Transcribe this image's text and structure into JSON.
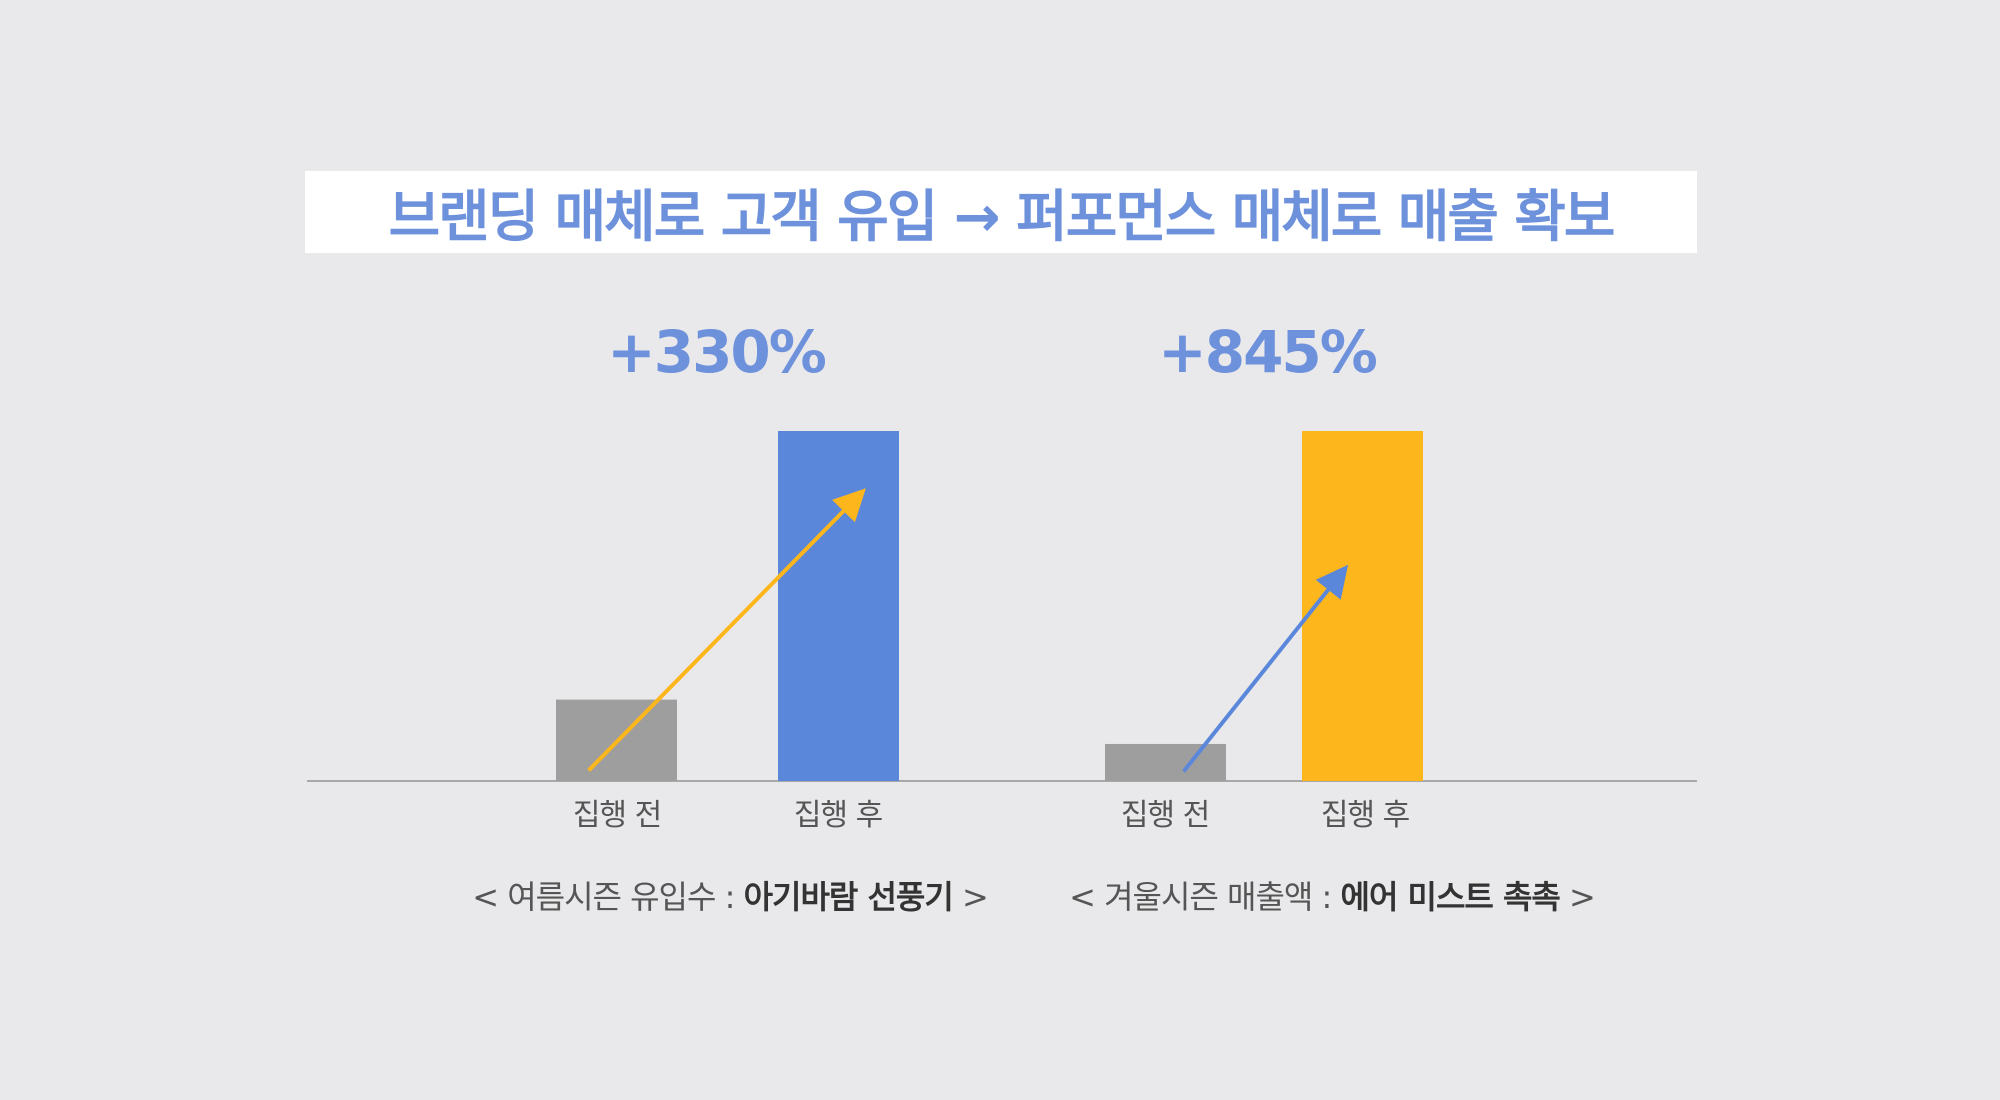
{
  "title": "브랜딩 매체로 고객 유입 → 퍼포먼스 매체로 매출 확보",
  "colors": {
    "accent_blue": "#5b87db",
    "accent_yellow": "#fdb61c",
    "before_gray": "#9e9e9e",
    "title_text": "#6e91dc",
    "background": "#e9e9eb"
  },
  "chart_data": [
    {
      "type": "bar",
      "growth_label": "+330%",
      "categories": [
        "집행 전",
        "집행 후"
      ],
      "values": [
        1,
        4.3
      ],
      "bar_colors": [
        "#9e9e9e",
        "#5b87db"
      ],
      "arrow_color": "#fdb61c",
      "caption_prefix": "< 여름시즌 유입수 : ",
      "caption_product": "아기바람 선풍기",
      "caption_suffix": " >"
    },
    {
      "type": "bar",
      "growth_label": "+845%",
      "categories": [
        "집행 전",
        "집행 후"
      ],
      "values": [
        1,
        9.45
      ],
      "bar_colors": [
        "#9e9e9e",
        "#fdb61c"
      ],
      "arrow_color": "#5b87db",
      "caption_prefix": "< 겨울시즌 매출액 : ",
      "caption_product": "에어 미스트 촉촉",
      "caption_suffix": " >"
    }
  ]
}
